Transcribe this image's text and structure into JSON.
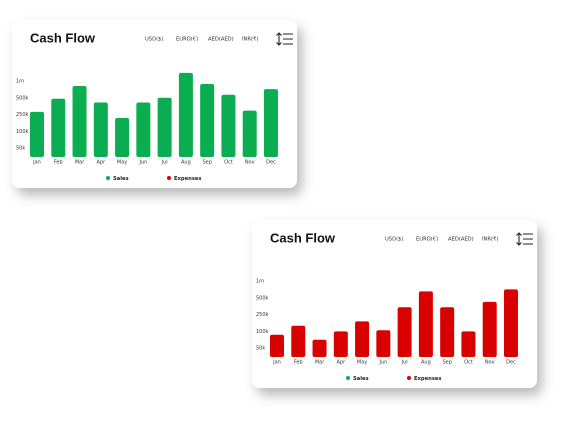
{
  "chart_data": [
    {
      "type": "bar",
      "title": "Cash Flow",
      "currencies": [
        "USD($)",
        "EURO(€)",
        "AED(AED)",
        "INR(₹)"
      ],
      "categories": [
        "Jan",
        "Feb",
        "Mar",
        "Apr",
        "May",
        "Jun",
        "Jul",
        "Aug",
        "Sep",
        "Oct",
        "Nov",
        "Dec"
      ],
      "values": [
        290000,
        485000,
        850000,
        430000,
        220000,
        430000,
        500000,
        1240000,
        910000,
        590000,
        310000,
        760000
      ],
      "color": "#0aad4f",
      "legend": [
        {
          "name": "Sales",
          "color": "#0aad4f"
        },
        {
          "name": "Expenses",
          "color": "#d90000"
        }
      ],
      "ylim": [
        0,
        1250000
      ],
      "yticks": [
        {
          "value": 1000000,
          "label": "1m"
        },
        {
          "value": 500000,
          "label": "500k"
        },
        {
          "value": 250000,
          "label": "250k"
        },
        {
          "value": 100000,
          "label": "100k"
        },
        {
          "value": 50000,
          "label": "50k"
        }
      ]
    },
    {
      "type": "bar",
      "title": "Cash Flow",
      "currencies": [
        "USD($)",
        "EURO(€)",
        "AED(AED)",
        "INR(₹)"
      ],
      "categories": [
        "Jan",
        "Feb",
        "Mar",
        "Apr",
        "May",
        "Jun",
        "Jul",
        "Aug",
        "Sep",
        "Oct",
        "Nov",
        "Dec"
      ],
      "values": [
        90000,
        150000,
        75000,
        100000,
        190000,
        110000,
        360000,
        690000,
        360000,
        100000,
        440000,
        750000
      ],
      "color": "#d90000",
      "legend": [
        {
          "name": "Sales",
          "color": "#0aad4f"
        },
        {
          "name": "Expenses",
          "color": "#d90000"
        }
      ],
      "ylim": [
        0,
        1250000
      ],
      "yticks": [
        {
          "value": 1000000,
          "label": "1m"
        },
        {
          "value": 500000,
          "label": "500k"
        },
        {
          "value": 250000,
          "label": "250k"
        },
        {
          "value": 100000,
          "label": "100k"
        },
        {
          "value": 50000,
          "label": "50k"
        }
      ]
    }
  ]
}
